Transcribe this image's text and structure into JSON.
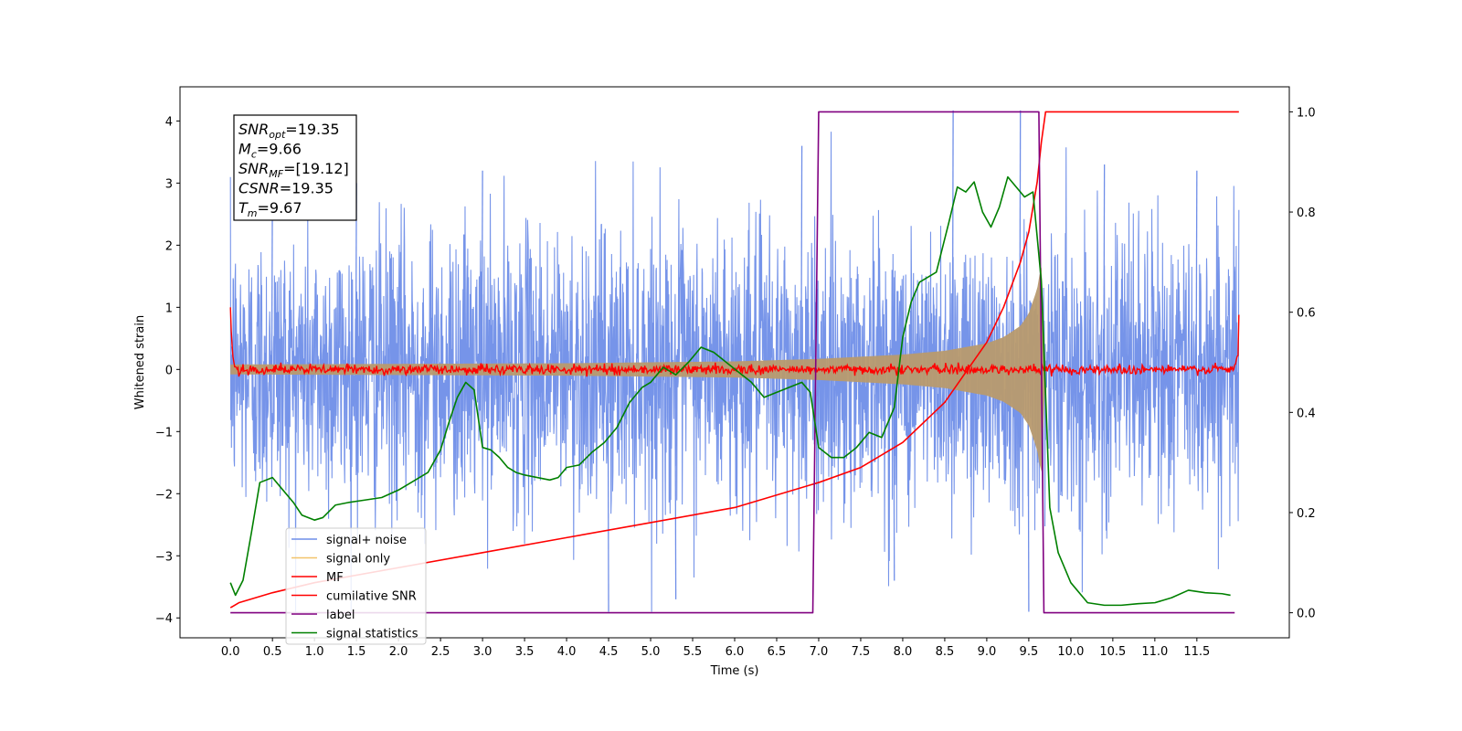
{
  "chart_data": {
    "type": "line",
    "xlabel": "Time (s)",
    "ylabel": "Whitened strain",
    "ylabel_right": "",
    "xlim": [
      -0.6,
      12.6
    ],
    "ylim": [
      -4.32,
      4.55
    ],
    "ylim_right": [
      -0.05,
      1.05
    ],
    "x_ticks": [
      0.0,
      0.5,
      1.0,
      1.5,
      2.0,
      2.5,
      3.0,
      3.5,
      4.0,
      4.5,
      5.0,
      5.5,
      6.0,
      6.5,
      7.0,
      7.5,
      8.0,
      8.5,
      9.0,
      9.5,
      10.0,
      10.5,
      11.0,
      11.5
    ],
    "x_tick_labels": [
      "0.0",
      "0.5",
      "1.0",
      "1.5",
      "2.0",
      "2.5",
      "3.0",
      "3.5",
      "4.0",
      "4.5",
      "5.0",
      "5.5",
      "6.0",
      "6.5",
      "7.0",
      "7.5",
      "8.0",
      "8.5",
      "9.0",
      "9.5",
      "10.0",
      "10.5",
      "11.0",
      "11.5"
    ],
    "y_ticks": [
      -4,
      -3,
      -2,
      -1,
      0,
      1,
      2,
      3,
      4
    ],
    "y_tick_labels": [
      "−4",
      "−3",
      "−2",
      "−1",
      "0",
      "1",
      "2",
      "3",
      "4"
    ],
    "y_right_ticks": [
      0.0,
      0.2,
      0.4,
      0.6,
      0.8,
      1.0
    ],
    "y_right_tick_labels": [
      "0.0",
      "0.2",
      "0.4",
      "0.6",
      "0.8",
      "1.0"
    ],
    "grid": false,
    "legend_position": "lower-left",
    "annotation": [
      {
        "sym": "SNR",
        "sub": "opt",
        "value": "=19.35"
      },
      {
        "sym": "M",
        "sub": "c",
        "value": "=9.66"
      },
      {
        "sym": "SNR",
        "sub": "MF",
        "value": "=[19.12]"
      },
      {
        "sym": "CSNR",
        "sub": "",
        "value": "=19.35"
      },
      {
        "sym": "T",
        "sub": "m",
        "value": "=9.67"
      }
    ],
    "series": [
      {
        "name": "signal+ noise",
        "axis": "left",
        "color": "#6f8ee8",
        "noise_envelope": {
          "t_start": 0.0,
          "t_end": 12.0,
          "typical_amplitude": 1.8,
          "max": 4.17,
          "min": -3.9
        },
        "spikes": [
          {
            "x": 8.6,
            "y": 4.17
          },
          {
            "x": 9.4,
            "y": 4.17
          },
          {
            "x": 6.8,
            "y": 3.6
          },
          {
            "x": 4.5,
            "y": -3.9
          },
          {
            "x": 9.5,
            "y": -3.9
          },
          {
            "x": 10.4,
            "y": 3.3
          },
          {
            "x": 11.5,
            "y": 3.2
          },
          {
            "x": 3.0,
            "y": 3.2
          },
          {
            "x": 0.5,
            "y": 3.0
          },
          {
            "x": 1.5,
            "y": 3.0
          },
          {
            "x": 5.3,
            "y": -3.7
          },
          {
            "x": 7.9,
            "y": -3.4
          }
        ]
      },
      {
        "name": "signal only",
        "axis": "left",
        "color": "#f2c46a",
        "envelope": {
          "x": [
            0.0,
            2.0,
            4.0,
            6.0,
            7.0,
            8.0,
            8.5,
            9.0,
            9.2,
            9.4,
            9.5,
            9.6,
            9.65,
            9.67,
            9.7
          ],
          "amplitude": [
            0.08,
            0.09,
            0.1,
            0.13,
            0.17,
            0.24,
            0.3,
            0.42,
            0.52,
            0.7,
            0.9,
            1.3,
            1.7,
            1.0,
            0.0
          ]
        }
      },
      {
        "name": "MF",
        "axis": "left",
        "color": "#ff0000",
        "baseline": 0.0,
        "noise_amplitude": 0.07,
        "edge_points": [
          {
            "x": 0.0,
            "y": 1.0
          },
          {
            "x": 12.0,
            "y": 0.88
          }
        ]
      },
      {
        "name": "cumilative SNR",
        "axis": "right",
        "color": "#ff0000",
        "x": [
          0.0,
          0.1,
          0.5,
          1.0,
          2.0,
          3.0,
          4.0,
          5.0,
          6.0,
          7.0,
          7.5,
          8.0,
          8.5,
          9.0,
          9.2,
          9.4,
          9.5,
          9.6,
          9.65,
          9.7,
          12.0
        ],
        "y": [
          0.01,
          0.02,
          0.04,
          0.06,
          0.09,
          0.12,
          0.15,
          0.18,
          0.21,
          0.26,
          0.29,
          0.34,
          0.42,
          0.54,
          0.61,
          0.7,
          0.76,
          0.86,
          0.94,
          1.0,
          1.0
        ]
      },
      {
        "name": "label",
        "axis": "right",
        "color": "#800080",
        "x": [
          0.0,
          6.93,
          7.0,
          9.62,
          9.68,
          11.95
        ],
        "y": [
          0.0,
          0.0,
          1.0,
          1.0,
          0.0,
          0.0
        ]
      },
      {
        "name": "signal statistics",
        "axis": "right",
        "color": "#008000",
        "x": [
          0.0,
          0.06,
          0.15,
          0.25,
          0.35,
          0.5,
          0.6,
          0.75,
          0.85,
          1.0,
          1.1,
          1.25,
          1.4,
          1.6,
          1.8,
          2.0,
          2.2,
          2.35,
          2.5,
          2.6,
          2.7,
          2.8,
          2.9,
          3.0,
          3.1,
          3.2,
          3.3,
          3.4,
          3.5,
          3.65,
          3.8,
          3.9,
          4.0,
          4.15,
          4.3,
          4.45,
          4.6,
          4.75,
          4.9,
          5.0,
          5.15,
          5.3,
          5.45,
          5.6,
          5.75,
          5.9,
          6.05,
          6.2,
          6.35,
          6.5,
          6.65,
          6.8,
          6.9,
          7.0,
          7.15,
          7.3,
          7.45,
          7.6,
          7.75,
          7.9,
          8.0,
          8.1,
          8.2,
          8.3,
          8.4,
          8.55,
          8.65,
          8.75,
          8.85,
          8.95,
          9.05,
          9.15,
          9.25,
          9.35,
          9.45,
          9.55,
          9.65,
          9.75,
          9.85,
          10.0,
          10.2,
          10.4,
          10.6,
          10.8,
          11.0,
          11.2,
          11.4,
          11.6,
          11.8,
          11.9
        ],
        "y": [
          0.06,
          0.035,
          0.065,
          0.16,
          0.26,
          0.27,
          0.25,
          0.22,
          0.195,
          0.185,
          0.19,
          0.215,
          0.22,
          0.225,
          0.23,
          0.245,
          0.265,
          0.28,
          0.325,
          0.38,
          0.43,
          0.46,
          0.445,
          0.33,
          0.325,
          0.31,
          0.29,
          0.28,
          0.275,
          0.27,
          0.265,
          0.27,
          0.29,
          0.295,
          0.32,
          0.34,
          0.37,
          0.42,
          0.45,
          0.46,
          0.49,
          0.475,
          0.5,
          0.53,
          0.52,
          0.5,
          0.48,
          0.46,
          0.43,
          0.44,
          0.45,
          0.46,
          0.44,
          0.33,
          0.31,
          0.31,
          0.33,
          0.36,
          0.35,
          0.41,
          0.55,
          0.62,
          0.66,
          0.67,
          0.68,
          0.78,
          0.85,
          0.84,
          0.86,
          0.8,
          0.77,
          0.81,
          0.87,
          0.85,
          0.83,
          0.84,
          0.66,
          0.21,
          0.12,
          0.06,
          0.02,
          0.015,
          0.015,
          0.018,
          0.02,
          0.03,
          0.045,
          0.04,
          0.038,
          0.035
        ]
      }
    ]
  }
}
